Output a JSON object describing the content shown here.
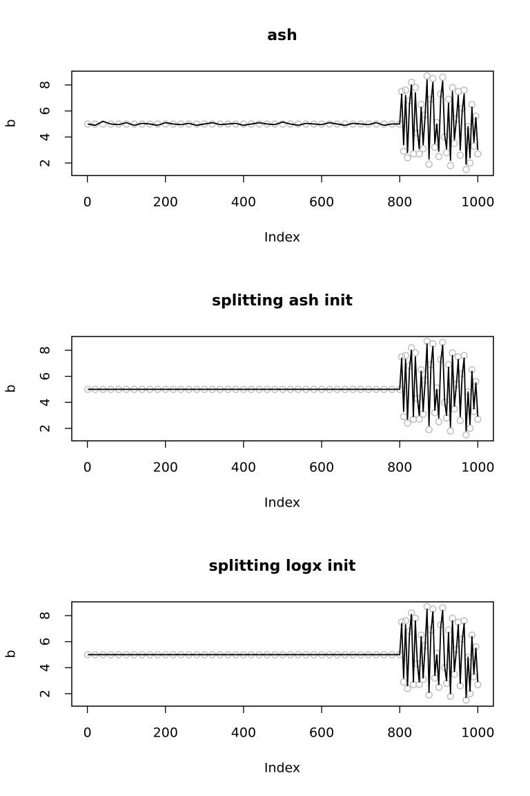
{
  "chart_data": [
    {
      "type": "line",
      "title": "ash",
      "xlabel": "Index",
      "ylabel": "b",
      "x": [
        1,
        20,
        40,
        60,
        80,
        100,
        120,
        140,
        160,
        180,
        200,
        220,
        240,
        260,
        280,
        300,
        320,
        340,
        360,
        380,
        400,
        420,
        440,
        460,
        480,
        500,
        520,
        540,
        560,
        580,
        600,
        620,
        640,
        660,
        680,
        700,
        720,
        740,
        760,
        780,
        800,
        805,
        810,
        815,
        820,
        825,
        830,
        835,
        840,
        845,
        850,
        855,
        860,
        865,
        870,
        875,
        880,
        885,
        890,
        895,
        900,
        905,
        910,
        915,
        920,
        925,
        930,
        935,
        940,
        945,
        950,
        955,
        960,
        965,
        970,
        975,
        980,
        985,
        990,
        995,
        1000
      ],
      "series": [
        {
          "style": "points",
          "color": "#bebebe",
          "values": [
            5,
            5,
            5,
            5,
            5,
            5,
            5,
            5,
            5,
            5,
            5,
            5,
            5,
            5,
            5,
            5,
            5,
            5,
            5,
            5,
            5,
            5,
            5,
            5,
            5,
            5,
            5,
            5,
            5,
            5,
            5,
            5,
            5,
            5,
            5,
            5,
            5,
            5,
            5,
            5,
            5,
            7.5,
            2.9,
            7.6,
            2.4,
            6.8,
            8.2,
            2.7,
            7.8,
            4.3,
            2.7,
            6.5,
            3.1,
            5.7,
            8.7,
            1.9,
            6.9,
            8.5,
            3.2,
            5.1,
            2.5,
            7.3,
            8.6,
            4.0,
            2.8,
            6.9,
            1.8,
            7.8,
            3.5,
            5.4,
            7.5,
            2.6,
            6.2,
            7.6,
            1.5,
            4.8,
            2.0,
            6.5,
            3.3,
            5.6,
            2.7
          ]
        },
        {
          "style": "line",
          "color": "#000000",
          "values": [
            5.0,
            4.9,
            5.2,
            5.0,
            4.95,
            5.1,
            4.9,
            5.05,
            5.0,
            4.9,
            5.1,
            5.0,
            4.95,
            5.05,
            4.9,
            5.0,
            5.1,
            4.95,
            5.0,
            5.05,
            4.9,
            5.0,
            5.1,
            5.0,
            4.95,
            5.15,
            5.0,
            4.9,
            5.05,
            5.0,
            4.95,
            5.1,
            5.0,
            4.9,
            5.05,
            5.0,
            4.95,
            5.1,
            4.9,
            5.0,
            5.0,
            7.3,
            3.4,
            7.2,
            2.8,
            6.5,
            8.0,
            3.0,
            7.4,
            4.5,
            3.1,
            6.3,
            3.4,
            5.6,
            8.4,
            2.3,
            6.7,
            8.2,
            3.5,
            5.0,
            2.9,
            7.0,
            8.3,
            4.2,
            3.1,
            6.6,
            2.2,
            7.5,
            3.8,
            5.3,
            7.2,
            3.0,
            6.0,
            7.3,
            1.9,
            4.8,
            2.4,
            6.3,
            3.6,
            5.5,
            3.0
          ]
        }
      ],
      "xlim": [
        -40,
        1040
      ],
      "xticks": [
        0,
        200,
        400,
        600,
        800,
        1000
      ],
      "ylim": [
        1.04,
        9.06
      ],
      "yticks": [
        2,
        4,
        6,
        8
      ]
    },
    {
      "type": "line",
      "title": "splitting ash init",
      "xlabel": "Index",
      "ylabel": "b",
      "x": [
        1,
        20,
        40,
        60,
        80,
        100,
        120,
        140,
        160,
        180,
        200,
        220,
        240,
        260,
        280,
        300,
        320,
        340,
        360,
        380,
        400,
        420,
        440,
        460,
        480,
        500,
        520,
        540,
        560,
        580,
        600,
        620,
        640,
        660,
        680,
        700,
        720,
        740,
        760,
        780,
        800,
        805,
        810,
        815,
        820,
        825,
        830,
        835,
        840,
        845,
        850,
        855,
        860,
        865,
        870,
        875,
        880,
        885,
        890,
        895,
        900,
        905,
        910,
        915,
        920,
        925,
        930,
        935,
        940,
        945,
        950,
        955,
        960,
        965,
        970,
        975,
        980,
        985,
        990,
        995,
        1000
      ],
      "series": [
        {
          "style": "points",
          "color": "#bebebe",
          "values": [
            5,
            5,
            5,
            5,
            5,
            5,
            5,
            5,
            5,
            5,
            5,
            5,
            5,
            5,
            5,
            5,
            5,
            5,
            5,
            5,
            5,
            5,
            5,
            5,
            5,
            5,
            5,
            5,
            5,
            5,
            5,
            5,
            5,
            5,
            5,
            5,
            5,
            5,
            5,
            5,
            5,
            7.5,
            2.9,
            7.6,
            2.4,
            6.8,
            8.2,
            2.7,
            7.8,
            4.3,
            2.7,
            6.5,
            3.1,
            5.7,
            8.7,
            1.9,
            6.9,
            8.5,
            3.2,
            5.1,
            2.5,
            7.3,
            8.6,
            4.0,
            2.8,
            6.9,
            1.8,
            7.8,
            3.5,
            5.4,
            7.5,
            2.6,
            6.2,
            7.6,
            1.5,
            4.8,
            2.0,
            6.5,
            3.3,
            5.6,
            2.7
          ]
        },
        {
          "style": "line",
          "color": "#000000",
          "values": [
            5,
            5,
            5,
            5,
            5,
            5,
            5,
            5,
            5,
            5,
            5,
            5,
            5,
            5,
            5,
            5,
            5,
            5,
            5,
            5,
            5,
            5,
            5,
            5,
            5,
            5,
            5,
            5,
            5,
            5,
            5,
            5,
            5,
            5,
            5,
            5,
            5,
            5,
            5,
            5,
            5,
            7.4,
            3.3,
            7.3,
            2.7,
            6.6,
            8.0,
            2.9,
            7.5,
            4.4,
            3.0,
            6.4,
            3.3,
            5.6,
            8.5,
            2.2,
            6.8,
            8.3,
            3.4,
            5.0,
            2.8,
            7.1,
            8.4,
            4.1,
            3.0,
            6.7,
            2.1,
            7.6,
            3.7,
            5.3,
            7.3,
            2.9,
            6.1,
            7.4,
            1.8,
            4.8,
            2.3,
            6.4,
            3.5,
            5.5,
            2.9
          ]
        }
      ],
      "xlim": [
        -40,
        1040
      ],
      "xticks": [
        0,
        200,
        400,
        600,
        800,
        1000
      ],
      "ylim": [
        1.04,
        9.06
      ],
      "yticks": [
        2,
        4,
        6,
        8
      ]
    },
    {
      "type": "line",
      "title": "splitting logx init",
      "xlabel": "Index",
      "ylabel": "b",
      "x": [
        1,
        20,
        40,
        60,
        80,
        100,
        120,
        140,
        160,
        180,
        200,
        220,
        240,
        260,
        280,
        300,
        320,
        340,
        360,
        380,
        400,
        420,
        440,
        460,
        480,
        500,
        520,
        540,
        560,
        580,
        600,
        620,
        640,
        660,
        680,
        700,
        720,
        740,
        760,
        780,
        800,
        805,
        810,
        815,
        820,
        825,
        830,
        835,
        840,
        845,
        850,
        855,
        860,
        865,
        870,
        875,
        880,
        885,
        890,
        895,
        900,
        905,
        910,
        915,
        920,
        925,
        930,
        935,
        940,
        945,
        950,
        955,
        960,
        965,
        970,
        975,
        980,
        985,
        990,
        995,
        1000
      ],
      "series": [
        {
          "style": "points",
          "color": "#bebebe",
          "values": [
            5,
            5,
            5,
            5,
            5,
            5,
            5,
            5,
            5,
            5,
            5,
            5,
            5,
            5,
            5,
            5,
            5,
            5,
            5,
            5,
            5,
            5,
            5,
            5,
            5,
            5,
            5,
            5,
            5,
            5,
            5,
            5,
            5,
            5,
            5,
            5,
            5,
            5,
            5,
            5,
            5,
            7.5,
            2.9,
            7.6,
            2.4,
            6.8,
            8.2,
            2.7,
            7.8,
            4.3,
            2.7,
            6.5,
            3.1,
            5.7,
            8.7,
            1.9,
            6.9,
            8.5,
            3.2,
            5.1,
            2.5,
            7.3,
            8.6,
            4.0,
            2.8,
            6.9,
            1.8,
            7.8,
            3.5,
            5.4,
            7.5,
            2.6,
            6.2,
            7.6,
            1.5,
            4.8,
            2.0,
            6.5,
            3.3,
            5.6,
            2.7
          ]
        },
        {
          "style": "line",
          "color": "#000000",
          "values": [
            5,
            5,
            5,
            5,
            5,
            5,
            5,
            5,
            5,
            5,
            5,
            5,
            5,
            5,
            5,
            5,
            5,
            5,
            5,
            5,
            5,
            5,
            5,
            5,
            5,
            5,
            5,
            5,
            5,
            5,
            5,
            5,
            5,
            5,
            5,
            5,
            5,
            5,
            5,
            5,
            5,
            7.4,
            3.2,
            7.3,
            2.6,
            6.6,
            8.1,
            2.9,
            7.6,
            4.4,
            2.9,
            6.4,
            3.2,
            5.6,
            8.5,
            2.1,
            6.8,
            8.3,
            3.4,
            5.0,
            2.7,
            7.1,
            8.4,
            4.1,
            3.0,
            6.7,
            2.0,
            7.6,
            3.7,
            5.3,
            7.3,
            2.8,
            6.1,
            7.4,
            1.7,
            4.8,
            2.2,
            6.4,
            3.5,
            5.5,
            2.9
          ]
        }
      ],
      "xlim": [
        -40,
        1040
      ],
      "xticks": [
        0,
        200,
        400,
        600,
        800,
        1000
      ],
      "ylim": [
        1.04,
        9.06
      ],
      "yticks": [
        2,
        4,
        6,
        8
      ]
    }
  ]
}
